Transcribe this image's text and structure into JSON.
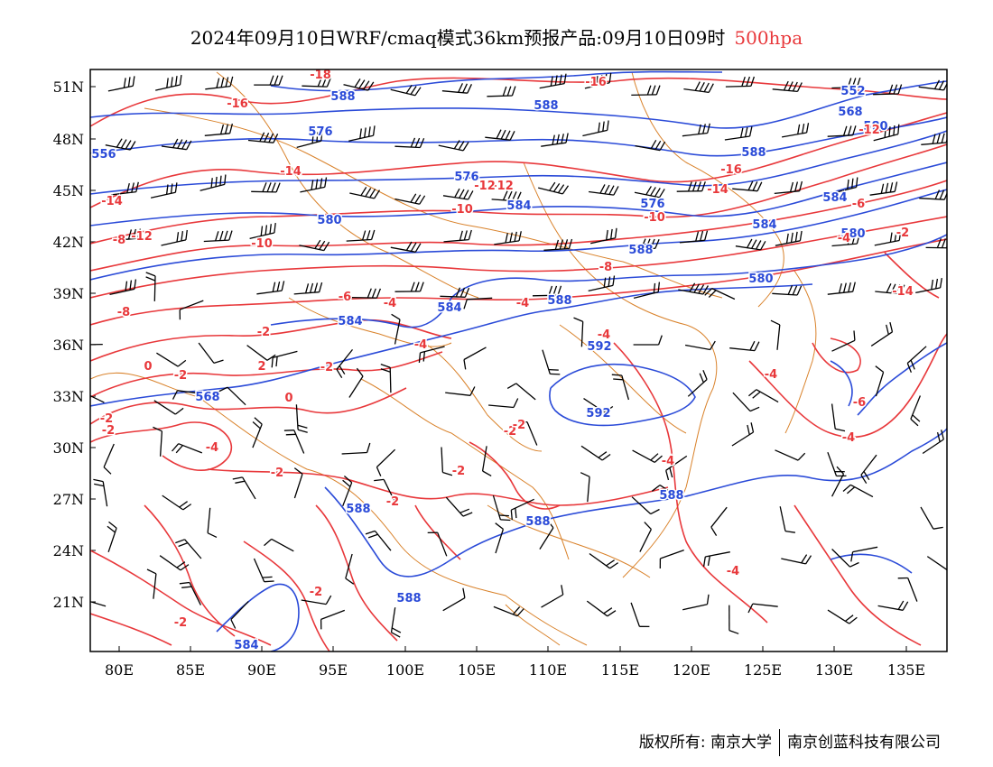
{
  "title": {
    "main": "2024年09月10日WRF/cmaq模式36km预报产品:09月10日09时",
    "level": "500hpa"
  },
  "axes": {
    "lon_labels": [
      "80E",
      "85E",
      "90E",
      "95E",
      "100E",
      "105E",
      "110E",
      "115E",
      "120E",
      "125E",
      "130E",
      "135E"
    ],
    "lat_labels": [
      "51N",
      "48N",
      "45N",
      "42N",
      "39N",
      "36N",
      "33N",
      "30N",
      "27N",
      "24N",
      "21N"
    ]
  },
  "legend_colors": {
    "height_contour": "#2b4bd8",
    "temperature_contour": "#e8383b",
    "boundary": "#d9822b",
    "wind_barb": "#000000"
  },
  "height_labels": [
    "584",
    "588",
    "576",
    "576",
    "588",
    "584",
    "552",
    "568",
    "580",
    "580",
    "576",
    "584",
    "588",
    "588",
    "584",
    "592",
    "592",
    "588",
    "588",
    "588",
    "588",
    "584",
    "588",
    "568",
    "580",
    "584",
    "580",
    "556"
  ],
  "temp_labels": [
    "-18",
    "-16",
    "-16",
    "-14",
    "-14",
    "-12",
    "-12",
    "-10",
    "-8",
    "-8",
    "-6",
    "-4",
    "-4",
    "-4",
    "-2",
    "-2",
    "0",
    "-2",
    "2",
    "0",
    "-2",
    "-4",
    "-2",
    "-2",
    "-2",
    "-4",
    "-4",
    "-4",
    "-4",
    "-4",
    "-6",
    "-6",
    "-4",
    "-8",
    "-10",
    "-12",
    "-14",
    "-16",
    "-12",
    "-14",
    "-10",
    "-2",
    "-2",
    "-2",
    "-2",
    "-2",
    "-2"
  ],
  "credit": {
    "left": "版权所有: 南京大学",
    "right": "南京创蓝科技有限公司"
  }
}
